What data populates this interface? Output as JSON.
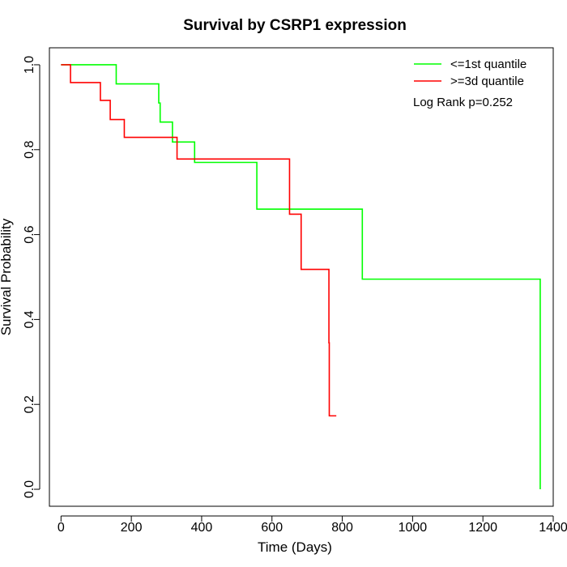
{
  "chart_data": {
    "type": "line",
    "title": "Survival by CSRP1 expression",
    "xlabel": "Time (Days)",
    "ylabel": "Survival Probability",
    "xlim": [
      -33,
      1400
    ],
    "ylim": [
      -0.04,
      1.04
    ],
    "x_ticks": [
      0,
      200,
      400,
      600,
      800,
      1000,
      1200,
      1400
    ],
    "y_ticks": [
      0.0,
      0.2,
      0.4,
      0.6,
      0.8,
      1.0
    ],
    "x_tick_labels": [
      "0",
      "200",
      "400",
      "600",
      "800",
      "1000",
      "1200",
      "1400"
    ],
    "y_tick_labels": [
      "0.0",
      "0.2",
      "0.4",
      "0.6",
      "0.8",
      "1.0"
    ],
    "legend_position": "top-right",
    "annotation": "Log Rank p=0.252",
    "grid": false,
    "series": [
      {
        "name": "<=1st quantile",
        "color": "#00ff00",
        "steps": [
          [
            0,
            1.0
          ],
          [
            157,
            0.955
          ],
          [
            278,
            0.91
          ],
          [
            282,
            0.865
          ],
          [
            317,
            0.818
          ],
          [
            380,
            0.77
          ],
          [
            557,
            0.66
          ],
          [
            857,
            0.495
          ],
          [
            1363,
            0.0
          ]
        ]
      },
      {
        "name": ">=3d quantile",
        "color": "#ff0000",
        "steps": [
          [
            0,
            1.0
          ],
          [
            27,
            0.958
          ],
          [
            112,
            0.916
          ],
          [
            140,
            0.871
          ],
          [
            180,
            0.829
          ],
          [
            330,
            0.778
          ],
          [
            650,
            0.648
          ],
          [
            683,
            0.518
          ],
          [
            762,
            0.345
          ],
          [
            763,
            0.173
          ]
        ],
        "end_x": 783
      }
    ]
  }
}
